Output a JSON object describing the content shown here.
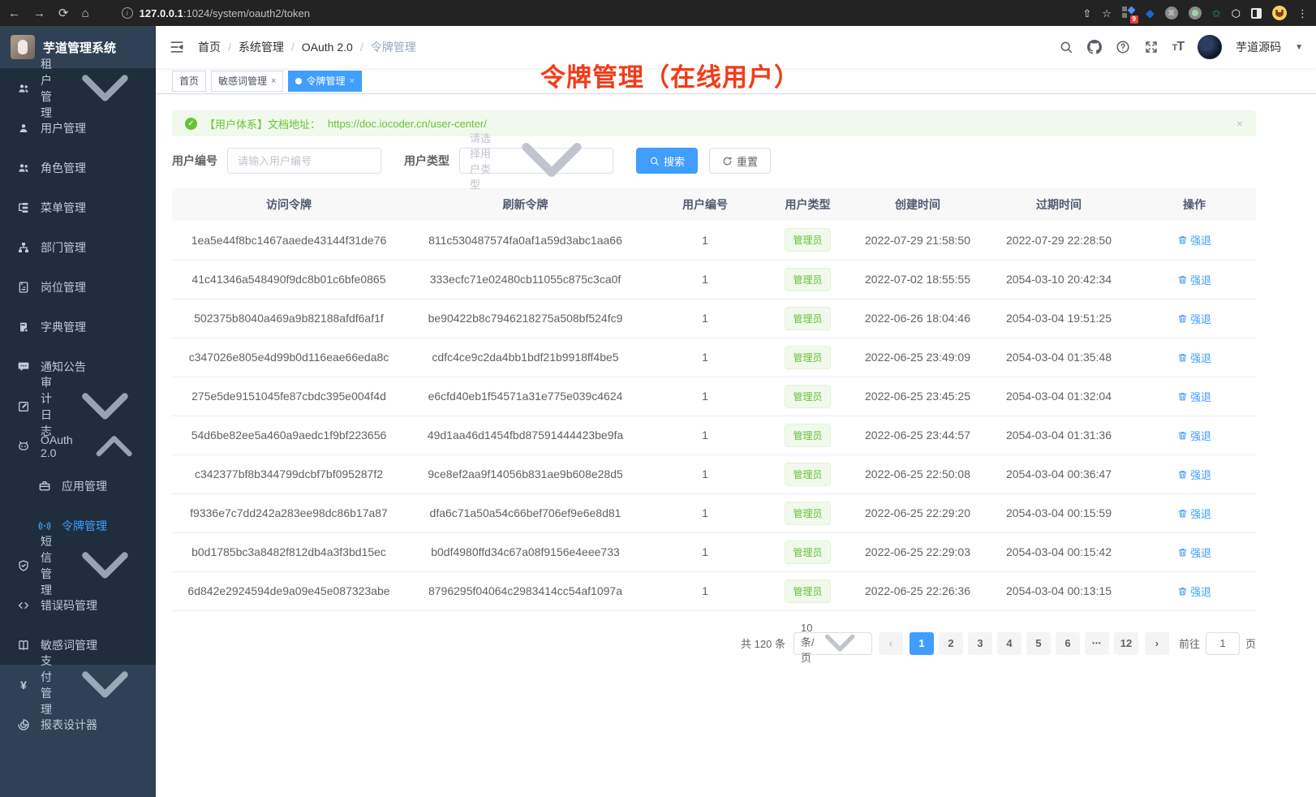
{
  "browser": {
    "url_host": "127.0.0.1",
    "url_rest": ":1024/system/oauth2/token",
    "extension_badge": "9"
  },
  "sidebar": {
    "logo_title": "芋道管理系统",
    "menu": [
      {
        "label": "租户管理",
        "icon": "users",
        "chevron": "down"
      },
      {
        "label": "用户管理",
        "icon": "user"
      },
      {
        "label": "角色管理",
        "icon": "users"
      },
      {
        "label": "菜单管理",
        "icon": "tree-menu"
      },
      {
        "label": "部门管理",
        "icon": "org-chart"
      },
      {
        "label": "岗位管理",
        "icon": "badge"
      },
      {
        "label": "字典管理",
        "icon": "dictionary"
      },
      {
        "label": "通知公告",
        "icon": "announcement"
      },
      {
        "label": "审计日志",
        "icon": "audit-log",
        "chevron": "down"
      },
      {
        "label": "OAuth 2.0",
        "icon": "robot",
        "chevron": "up"
      },
      {
        "label": "应用管理",
        "icon": "briefcase",
        "indent": true
      },
      {
        "label": "令牌管理",
        "icon": "signal",
        "indent": true,
        "active": true
      },
      {
        "label": "短信管理",
        "icon": "shield",
        "chevron": "down"
      },
      {
        "label": "错误码管理",
        "icon": "code"
      },
      {
        "label": "敏感词管理",
        "icon": "open-book"
      },
      {
        "label": "支付管理",
        "icon": "yen",
        "chevron": "down",
        "section": "light"
      },
      {
        "label": "报表设计器",
        "icon": "pie",
        "section": "light"
      }
    ]
  },
  "navbar": {
    "breadcrumb": [
      "首页",
      "系统管理",
      "OAuth 2.0",
      "令牌管理"
    ],
    "breadcrumb_sep": "/",
    "user_name": "芋道源码"
  },
  "annotation": "令牌管理（在线用户）",
  "tags": [
    {
      "label": "首页",
      "closable": false,
      "active": false
    },
    {
      "label": "敏感词管理",
      "closable": true,
      "active": false
    },
    {
      "label": "令牌管理",
      "closable": true,
      "active": true
    }
  ],
  "alert": {
    "prefix": "【用户体系】文档地址：",
    "link": "https://doc.iocoder.cn/user-center/"
  },
  "filters": {
    "user_id_label": "用户编号",
    "user_id_placeholder": "请输入用户编号",
    "user_type_label": "用户类型",
    "user_type_placeholder": "请选择用户类型",
    "search_label": "搜索",
    "reset_label": "重置"
  },
  "table": {
    "columns": [
      "访问令牌",
      "刷新令牌",
      "用户编号",
      "用户类型",
      "创建时间",
      "过期时间",
      "操作"
    ],
    "user_type_badge": "管理员",
    "action_label": "强退",
    "rows": [
      {
        "access": "1ea5e44f8bc1467aaede43144f31de76",
        "refresh": "811c530487574fa0af1a59d3abc1aa66",
        "user_id": "1",
        "created": "2022-07-29 21:58:50",
        "expires": "2022-07-29 22:28:50"
      },
      {
        "access": "41c41346a548490f9dc8b01c6bfe0865",
        "refresh": "333ecfc71e02480cb11055c875c3ca0f",
        "user_id": "1",
        "created": "2022-07-02 18:55:55",
        "expires": "2054-03-10 20:42:34"
      },
      {
        "access": "502375b8040a469a9b82188afdf6af1f",
        "refresh": "be90422b8c7946218275a508bf524fc9",
        "user_id": "1",
        "created": "2022-06-26 18:04:46",
        "expires": "2054-03-04 19:51:25"
      },
      {
        "access": "c347026e805e4d99b0d116eae66eda8c",
        "refresh": "cdfc4ce9c2da4bb1bdf21b9918ff4be5",
        "user_id": "1",
        "created": "2022-06-25 23:49:09",
        "expires": "2054-03-04 01:35:48"
      },
      {
        "access": "275e5de9151045fe87cbdc395e004f4d",
        "refresh": "e6cfd40eb1f54571a31e775e039c4624",
        "user_id": "1",
        "created": "2022-06-25 23:45:25",
        "expires": "2054-03-04 01:32:04"
      },
      {
        "access": "54d6be82ee5a460a9aedc1f9bf223656",
        "refresh": "49d1aa46d1454fbd87591444423be9fa",
        "user_id": "1",
        "created": "2022-06-25 23:44:57",
        "expires": "2054-03-04 01:31:36"
      },
      {
        "access": "c342377bf8b344799dcbf7bf095287f2",
        "refresh": "9ce8ef2aa9f14056b831ae9b608e28d5",
        "user_id": "1",
        "created": "2022-06-25 22:50:08",
        "expires": "2054-03-04 00:36:47"
      },
      {
        "access": "f9336e7c7dd242a283ee98dc86b17a87",
        "refresh": "dfa6c71a50a54c66bef706ef9e6e8d81",
        "user_id": "1",
        "created": "2022-06-25 22:29:20",
        "expires": "2054-03-04 00:15:59"
      },
      {
        "access": "b0d1785bc3a8482f812db4a3f3bd15ec",
        "refresh": "b0df4980ffd34c67a08f9156e4eee733",
        "user_id": "1",
        "created": "2022-06-25 22:29:03",
        "expires": "2054-03-04 00:15:42"
      },
      {
        "access": "6d842e2924594de9a09e45e087323abe",
        "refresh": "8796295f04064c2983414cc54af1097a",
        "user_id": "1",
        "created": "2022-06-25 22:26:36",
        "expires": "2054-03-04 00:13:15"
      }
    ]
  },
  "pagination": {
    "total_label": "共 120 条",
    "page_size": "10条/页",
    "pages": [
      "1",
      "2",
      "3",
      "4",
      "5",
      "6",
      "...",
      "12"
    ],
    "active_page": "1",
    "goto_label": "前往",
    "goto_value": "1",
    "page_unit": "页"
  },
  "colors": {
    "accent": "#409eff",
    "success": "#67c23a",
    "annotation_red": "#f43a17",
    "sidebar_dark": "#1f2d3d",
    "sidebar_base": "#304156"
  }
}
